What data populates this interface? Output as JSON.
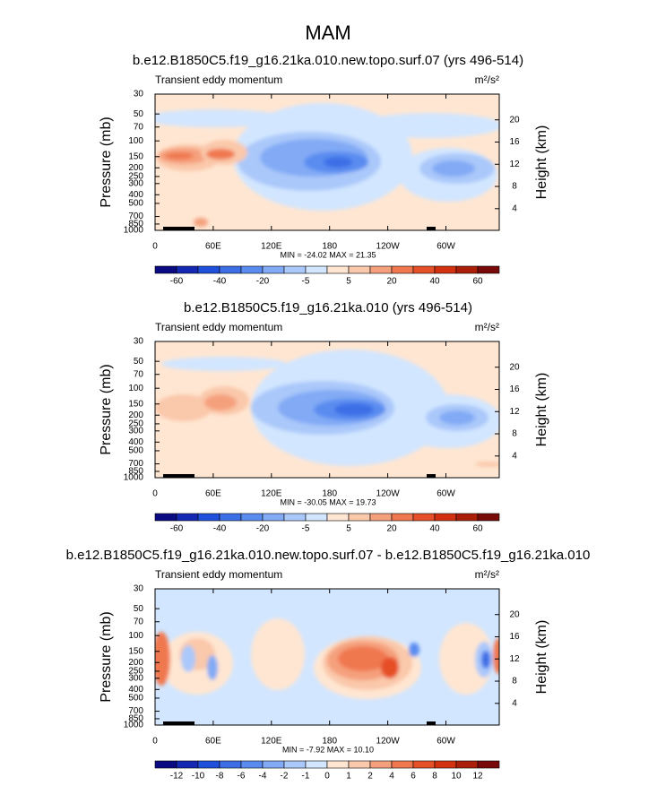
{
  "title": "MAM",
  "colorbar_colors": [
    "#0a0a82",
    "#1428b4",
    "#1e50dc",
    "#3c6ee6",
    "#5a8cf0",
    "#82aaf5",
    "#aac8fa",
    "#d2e6ff",
    "#ffe6d2",
    "#fac8aa",
    "#f5a07d",
    "#f07850",
    "#e65028",
    "#d2320f",
    "#aa1e0a",
    "#780a0a"
  ],
  "panels": [
    {
      "subtitle": "b.e12.B1850C5.f19_g16.21ka.010.new.topo.surf.07 (yrs 496-514)",
      "left_label": "Transient eddy momentum",
      "units": "m²/s²",
      "ylabel": "Pressure (mb)",
      "y2label": "Height (km)",
      "ylim": [
        30,
        1000
      ],
      "yticks": [
        30,
        50,
        70,
        100,
        150,
        200,
        250,
        300,
        400,
        500,
        700,
        850,
        1000
      ],
      "y2ticks": [
        4,
        8,
        12,
        16,
        20
      ],
      "xlim": [
        0,
        355
      ],
      "xticks": [
        0,
        {
          "value": 60,
          "label": "60E"
        },
        {
          "value": 120,
          "label": "120E"
        },
        180,
        {
          "value": 240,
          "label": "120W"
        },
        {
          "value": 300,
          "label": "60W"
        }
      ],
      "stats": "MIN = -24.02  MAX = 21.35",
      "colorbar_labels": [
        -60,
        -40,
        -20,
        -5,
        5,
        20,
        40,
        60
      ]
    },
    {
      "subtitle": "b.e12.B1850C5.f19_g16.21ka.010 (yrs 496-514)",
      "left_label": "Transient eddy momentum",
      "units": "m²/s²",
      "ylabel": "Pressure (mb)",
      "y2label": "Height (km)",
      "ylim": [
        30,
        1000
      ],
      "yticks": [
        30,
        50,
        70,
        100,
        150,
        200,
        250,
        300,
        400,
        500,
        700,
        850,
        1000
      ],
      "y2ticks": [
        4,
        8,
        12,
        16,
        20
      ],
      "xlim": [
        0,
        355
      ],
      "xticks": [
        0,
        {
          "value": 60,
          "label": "60E"
        },
        {
          "value": 120,
          "label": "120E"
        },
        180,
        {
          "value": 240,
          "label": "120W"
        },
        {
          "value": 300,
          "label": "60W"
        }
      ],
      "stats": "MIN = -30.05  MAX = 19.73",
      "colorbar_labels": [
        -60,
        -40,
        -20,
        -5,
        5,
        20,
        40,
        60
      ]
    },
    {
      "subtitle": "b.e12.B1850C5.f19_g16.21ka.010.new.topo.surf.07 - b.e12.B1850C5.f19_g16.21ka.010",
      "left_label": "Transient eddy momentum",
      "units": "m²/s²",
      "ylabel": "Pressure (mb)",
      "y2label": "Height (km)",
      "ylim": [
        30,
        1000
      ],
      "yticks": [
        30,
        50,
        70,
        100,
        150,
        200,
        250,
        300,
        400,
        500,
        700,
        850,
        1000
      ],
      "y2ticks": [
        4,
        8,
        12,
        16,
        20
      ],
      "xlim": [
        0,
        355
      ],
      "xticks": [
        0,
        {
          "value": 60,
          "label": "60E"
        },
        {
          "value": 120,
          "label": "120E"
        },
        180,
        {
          "value": 240,
          "label": "120W"
        },
        {
          "value": 300,
          "label": "60W"
        }
      ],
      "stats": "MIN = -7.92  MAX = 10.10",
      "colorbar_labels": [
        -12,
        -10,
        -8,
        -6,
        -4,
        -2,
        -1,
        0,
        1,
        2,
        4,
        6,
        8,
        10,
        12
      ]
    }
  ]
}
